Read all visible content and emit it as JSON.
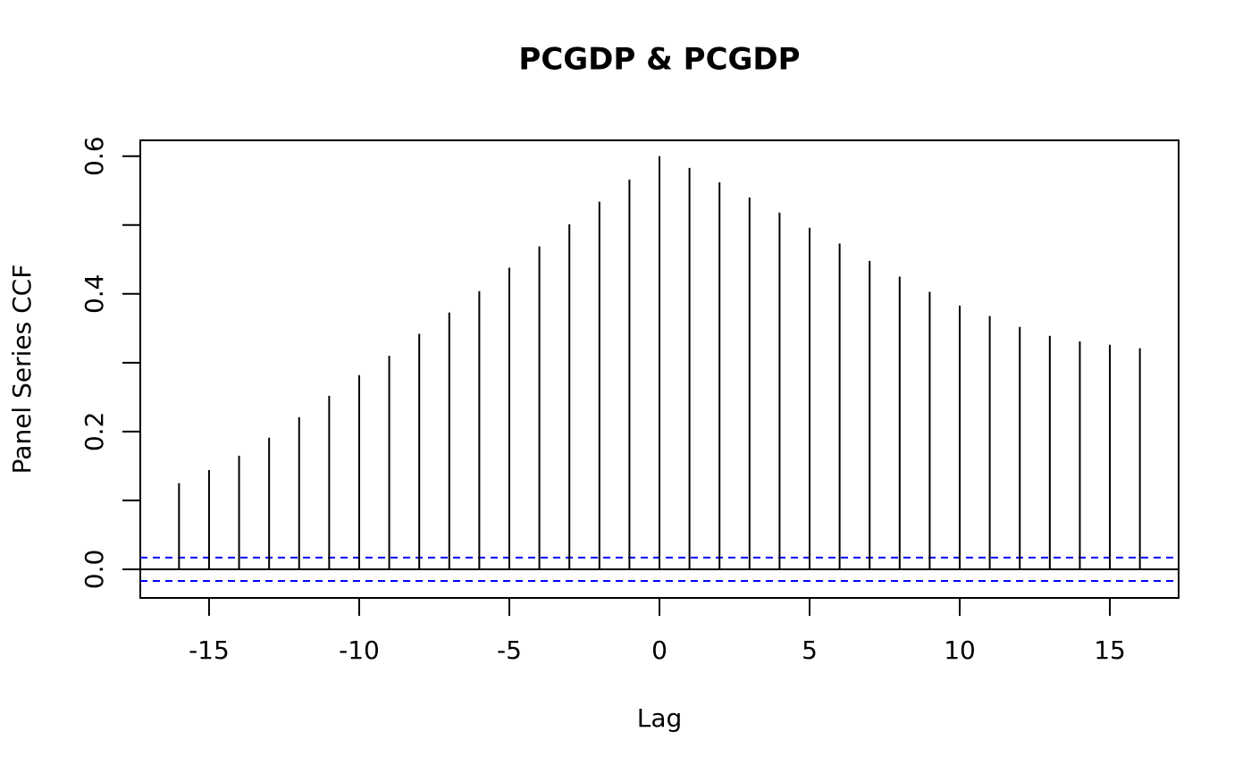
{
  "chart_data": {
    "type": "ccf",
    "title": "PCGDP & PCGDP",
    "xlabel": "Lag",
    "ylabel": "Panel Series CCF",
    "x": [
      -16,
      -15,
      -14,
      -13,
      -12,
      -11,
      -10,
      -9,
      -8,
      -7,
      -6,
      -5,
      -4,
      -3,
      -2,
      -1,
      0,
      1,
      2,
      3,
      4,
      5,
      6,
      7,
      8,
      9,
      10,
      11,
      12,
      13,
      14,
      15,
      16
    ],
    "values": [
      0.125,
      0.144,
      0.165,
      0.191,
      0.221,
      0.252,
      0.282,
      0.31,
      0.342,
      0.373,
      0.404,
      0.438,
      0.469,
      0.501,
      0.534,
      0.566,
      0.6,
      0.583,
      0.562,
      0.54,
      0.518,
      0.496,
      0.473,
      0.448,
      0.425,
      0.403,
      0.383,
      0.368,
      0.352,
      0.339,
      0.331,
      0.326,
      0.321
    ],
    "color": "#000000",
    "ci": [
      0.017,
      -0.017
    ],
    "ci_color": "#0000ff",
    "xlim": [
      -17.29,
      17.29
    ],
    "xticks": [
      -15,
      -10,
      -5,
      0,
      5,
      10,
      15
    ],
    "ylim": [
      -0.0416,
      0.623
    ],
    "yticks": [
      {
        "value": 0,
        "label": "0.0"
      },
      0.2,
      0.4,
      0.6
    ],
    "yminor_ticks": [
      0.1,
      0.3,
      0.5
    ]
  }
}
